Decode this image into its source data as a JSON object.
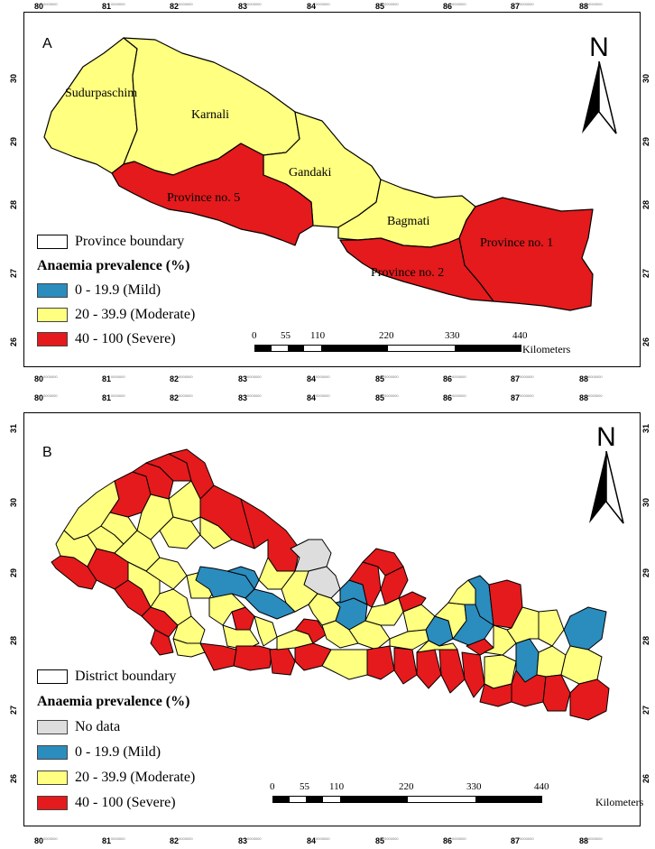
{
  "axes": {
    "x_ticks": [
      "80",
      "81",
      "82",
      "83",
      "84",
      "85",
      "86",
      "87",
      "88"
    ],
    "x_tick_suffix": "0000000",
    "y_ticks_a": [
      "30",
      "29",
      "28",
      "27",
      "26"
    ],
    "y_ticks_b": [
      "31",
      "30",
      "29",
      "28",
      "27",
      "26"
    ]
  },
  "colors": {
    "mild": "#2b8cbe",
    "moderate": "#ffff80",
    "severe": "#e41a1c",
    "no_data": "#dddddd",
    "boundary": "#000000"
  },
  "north_label": "N",
  "panel_a": {
    "letter": "A",
    "legend": {
      "boundary_label": "Province boundary",
      "title": "Anaemia prevalence (%)",
      "items": [
        {
          "label": "0 - 19.9 (Mild)",
          "color": "#2b8cbe"
        },
        {
          "label": "20 - 39.9 (Moderate)",
          "color": "#ffff80"
        },
        {
          "label": "40 - 100 (Severe)",
          "color": "#e41a1c"
        }
      ]
    },
    "regions": [
      {
        "name": "Sudurpaschim",
        "category": "moderate"
      },
      {
        "name": "Karnali",
        "category": "moderate"
      },
      {
        "name": "Gandaki",
        "category": "moderate"
      },
      {
        "name": "Province no. 5",
        "category": "severe"
      },
      {
        "name": "Bagmati",
        "category": "moderate"
      },
      {
        "name": "Province no. 1",
        "category": "severe"
      },
      {
        "name": "Province no. 2",
        "category": "severe"
      }
    ],
    "scale": {
      "ticks": [
        "0",
        "55",
        "110",
        "220",
        "330",
        "440"
      ],
      "unit": "Kilometers"
    }
  },
  "panel_b": {
    "letter": "B",
    "legend": {
      "boundary_label": "District boundary",
      "title": "Anaemia prevalence (%)",
      "items": [
        {
          "label": "No data",
          "color": "#dddddd"
        },
        {
          "label": "0 - 19.9 (Mild)",
          "color": "#2b8cbe"
        },
        {
          "label": "20 - 39.9 (Moderate)",
          "color": "#ffff80"
        },
        {
          "label": "40 - 100 (Severe)",
          "color": "#e41a1c"
        }
      ]
    },
    "scale": {
      "ticks": [
        "0",
        "55",
        "110",
        "220",
        "330",
        "440"
      ],
      "unit": "Kilometers"
    }
  }
}
